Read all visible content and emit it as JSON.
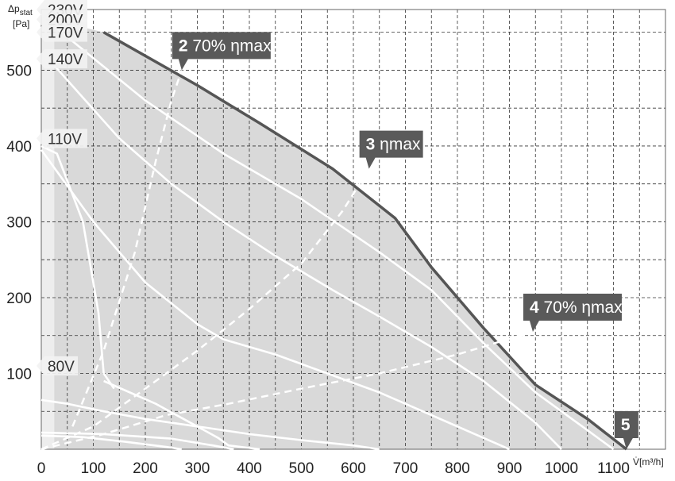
{
  "chart_data": {
    "type": "line",
    "xlabel": "V̇[m³/h]",
    "ylabel_main": "Δp",
    "ylabel_sub": "stat",
    "ylabel_unit": "[Pa]",
    "xlim": [
      0,
      1200
    ],
    "ylim": [
      0,
      580
    ],
    "x_ticks": [
      0,
      100,
      200,
      300,
      400,
      500,
      600,
      700,
      800,
      900,
      1000,
      1100
    ],
    "y_ticks": [
      100,
      200,
      300,
      400,
      500
    ],
    "grid": true,
    "envelope": {
      "x": [
        0,
        0,
        1125,
        120,
        0
      ],
      "y": [
        0,
        570,
        0,
        550,
        570
      ]
    },
    "series": [
      {
        "name": "230V",
        "x": [
          120,
          300,
          420,
          560,
          680,
          750,
          850,
          950,
          1050,
          1125
        ],
        "y": [
          550,
          480,
          430,
          370,
          305,
          240,
          160,
          85,
          40,
          0
        ],
        "style": "max"
      },
      {
        "name": "170V",
        "x": [
          30,
          200,
          350,
          500,
          650,
          750,
          850,
          950,
          1050,
          1100
        ],
        "y": [
          555,
          460,
          390,
          330,
          260,
          210,
          140,
          75,
          25,
          0
        ]
      },
      {
        "name": "140V",
        "x": [
          20,
          150,
          250,
          350,
          450,
          560,
          650,
          750,
          850,
          950,
          1000
        ],
        "y": [
          510,
          410,
          350,
          300,
          255,
          210,
          175,
          135,
          90,
          35,
          0
        ]
      },
      {
        "name": "110V",
        "x": [
          0,
          100,
          200,
          300,
          350,
          450,
          550,
          650,
          750,
          850,
          900
        ],
        "y": [
          395,
          300,
          220,
          165,
          145,
          125,
          100,
          75,
          45,
          15,
          0
        ]
      },
      {
        "name": "80V",
        "x": [
          0,
          50,
          120,
          200,
          300,
          400,
          500,
          600,
          650
        ],
        "y": [
          65,
          60,
          50,
          40,
          30,
          20,
          12,
          5,
          0
        ]
      },
      {
        "name": "inner-1",
        "x": [
          0,
          120,
          250,
          330,
          370
        ],
        "y": [
          22,
          20,
          14,
          5,
          0
        ]
      },
      {
        "name": "inner-2",
        "x": [
          0,
          80,
          160,
          240,
          270
        ],
        "y": [
          18,
          16,
          10,
          3,
          0
        ]
      },
      {
        "name": "x-4",
        "x": [
          0,
          30,
          80,
          110,
          115,
          120,
          140
        ],
        "y": [
          400,
          390,
          300,
          180,
          140,
          100,
          80
        ]
      },
      {
        "name": "x-5",
        "x": [
          120,
          220,
          300,
          340,
          360,
          420
        ],
        "y": [
          90,
          60,
          30,
          15,
          5,
          0
        ]
      }
    ],
    "dashed": [
      {
        "x": [
          60,
          120,
          180,
          220,
          250,
          270
        ],
        "y": [
          30,
          130,
          260,
          380,
          460,
          500
        ]
      },
      {
        "x": [
          0,
          100,
          200,
          300,
          400,
          500,
          580,
          630
        ],
        "y": [
          0,
          30,
          80,
          130,
          185,
          245,
          315,
          370
        ]
      },
      {
        "x": [
          0,
          120,
          240,
          360,
          500,
          650,
          800,
          945
        ],
        "y": [
          0,
          20,
          45,
          60,
          80,
          100,
          125,
          155
        ]
      }
    ],
    "voltage_labels": [
      {
        "text": "230V",
        "y": 580
      },
      {
        "text": "200V",
        "y": 567
      },
      {
        "text": "170V",
        "y": 550
      },
      {
        "text": "140V",
        "y": 515
      },
      {
        "text": "110V",
        "y": 410
      },
      {
        "text": "80V",
        "y": 110
      }
    ],
    "points": [
      {
        "num": "2",
        "label": "70% ηmax",
        "x": 270,
        "y": 500
      },
      {
        "num": "3",
        "label": "ηmax",
        "x": 630,
        "y": 370
      },
      {
        "num": "4",
        "label": "70% ηmax",
        "x": 945,
        "y": 155
      },
      {
        "num": "5",
        "label": "",
        "x": 1125,
        "y": 0
      }
    ],
    "colors": {
      "fill": "#d9d9d9",
      "light_fill": "#ededed",
      "max_curve": "#555555",
      "curve": "#ffffff",
      "marker": "#5a5a5a",
      "grid": "#333333",
      "label_bg": "#f2f2f2"
    }
  }
}
